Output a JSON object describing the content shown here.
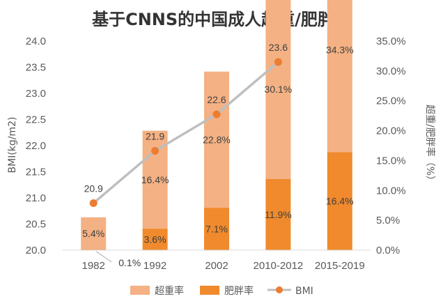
{
  "chart_data": {
    "type": "bar",
    "title": "基于CNNS的中国成人超重/肥胖率",
    "categories": [
      "1982",
      "1992",
      "2002",
      "2010-2012",
      "2015-2019"
    ],
    "ylabel_left": "BMI(kg/m2)",
    "ylabel_right": "超重/肥胖率（%）",
    "ylim_left": [
      20.0,
      24.0
    ],
    "ylim_right": [
      0,
      35
    ],
    "left_ticks": [
      "20.0",
      "20.5",
      "21.0",
      "21.5",
      "22.0",
      "22.5",
      "23.0",
      "23.5",
      "24.0"
    ],
    "right_ticks": [
      "0.0%",
      "5.0%",
      "10.0%",
      "15.0%",
      "20.0%",
      "25.0%",
      "30.0%",
      "35.0%"
    ],
    "grid": false,
    "legend_position": "bottom",
    "series": [
      {
        "name": "超重率",
        "type": "bar",
        "axis": "right",
        "color": "#F4B183",
        "values": [
          5.4,
          16.4,
          22.8,
          30.1,
          34.3
        ],
        "labels": [
          "5.4%",
          "16.4%",
          "22.8%",
          "30.1%",
          "34.3%"
        ]
      },
      {
        "name": "肥胖率",
        "type": "bar",
        "axis": "right",
        "color": "#F08A2C",
        "values": [
          0.1,
          3.6,
          7.1,
          11.9,
          16.4
        ],
        "labels": [
          "0.1%",
          "3.6%",
          "7.1%",
          "11.9%",
          "16.4%"
        ]
      },
      {
        "name": "BMI",
        "type": "line",
        "axis": "left",
        "color": "#BFBFBF",
        "marker_color": "#ED7D31",
        "values": [
          20.9,
          21.9,
          22.6,
          23.6,
          null
        ],
        "labels": [
          "20.9",
          "21.9",
          "22.6",
          "23.6",
          null
        ]
      }
    ]
  }
}
